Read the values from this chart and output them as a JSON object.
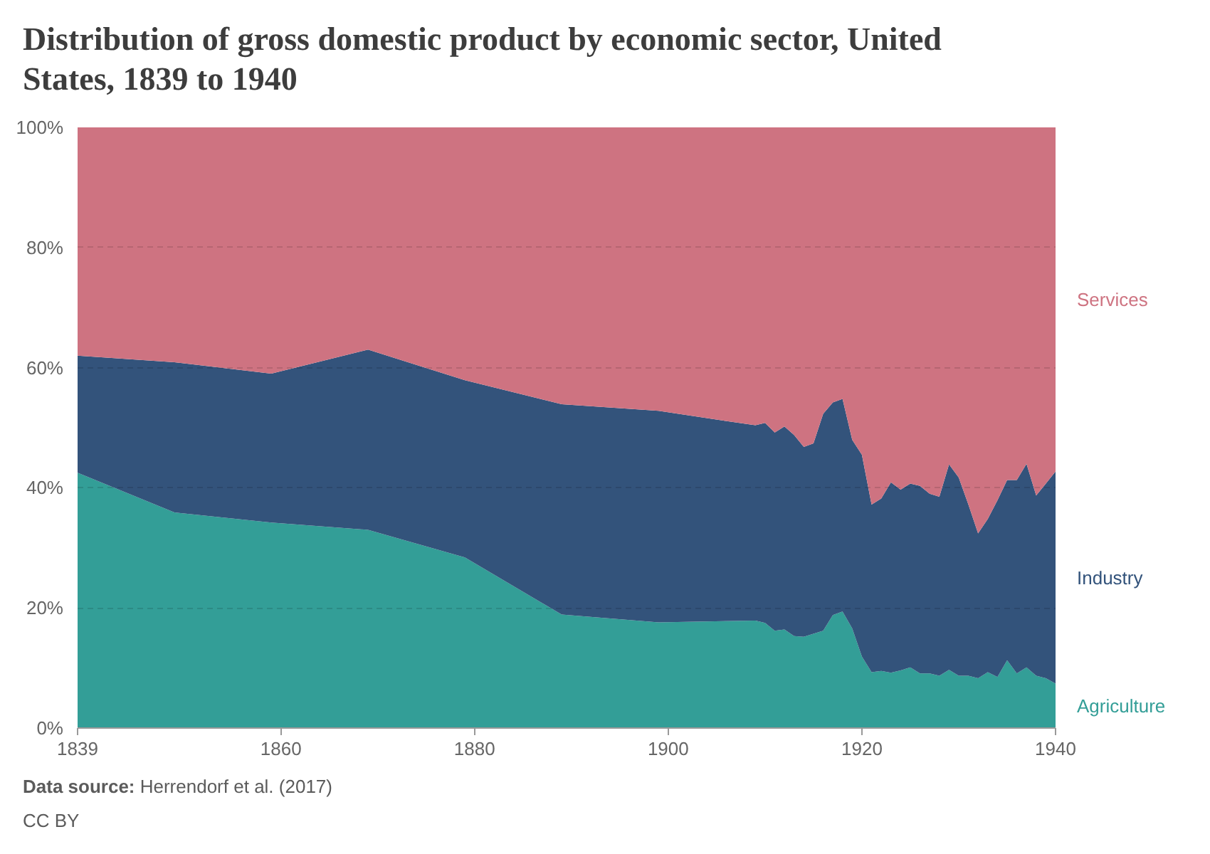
{
  "chart_data": {
    "type": "area",
    "stacked": true,
    "title": "Distribution of gross domestic product by economic sector, United States, 1839 to 1940",
    "annotations": [
      "Data source: Herrendorf et al. (2017)",
      "CC BY"
    ],
    "x": [
      1839,
      1849,
      1859,
      1869,
      1879,
      1889,
      1899,
      1909,
      1910,
      1911,
      1912,
      1913,
      1914,
      1915,
      1916,
      1917,
      1918,
      1919,
      1920,
      1921,
      1922,
      1923,
      1924,
      1925,
      1926,
      1927,
      1928,
      1929,
      1930,
      1931,
      1932,
      1933,
      1934,
      1935,
      1936,
      1937,
      1938,
      1939,
      1940
    ],
    "series": [
      {
        "name": "Agriculture",
        "color": "#339e97",
        "values": [
          42.5,
          35.9,
          34.2,
          33.0,
          28.4,
          18.9,
          17.6,
          17.9,
          17.5,
          16.2,
          16.4,
          15.3,
          15.2,
          15.7,
          16.2,
          18.8,
          19.4,
          16.6,
          11.9,
          9.3,
          9.5,
          9.2,
          9.6,
          10.1,
          9.1,
          9.1,
          8.7,
          9.7,
          8.7,
          8.7,
          8.3,
          9.3,
          8.5,
          11.3,
          9.1,
          10.1,
          8.7,
          8.3,
          7.4
        ]
      },
      {
        "name": "Industry",
        "color": "#33537b",
        "values": [
          19.5,
          25.0,
          24.8,
          30.0,
          29.5,
          35.0,
          35.2,
          32.5,
          33.3,
          33.0,
          33.8,
          33.5,
          31.6,
          31.7,
          36.1,
          35.4,
          35.4,
          31.4,
          33.6,
          27.9,
          28.7,
          31.7,
          30.1,
          30.6,
          31.2,
          29.9,
          29.8,
          34.2,
          33.0,
          28.5,
          24.1,
          25.5,
          29.4,
          30.0,
          32.2,
          33.9,
          30.0,
          32.4,
          35.3
        ]
      },
      {
        "name": "Services",
        "color": "#ce7381",
        "values": [
          38.0,
          39.1,
          41.0,
          37.0,
          42.1,
          46.1,
          47.2,
          49.6,
          49.2,
          50.8,
          49.8,
          51.2,
          53.2,
          52.6,
          47.7,
          45.8,
          45.2,
          52.0,
          54.5,
          62.8,
          61.8,
          59.1,
          60.3,
          59.3,
          59.7,
          61.0,
          61.5,
          56.1,
          58.3,
          62.8,
          67.6,
          65.2,
          62.1,
          58.7,
          58.7,
          56.0,
          61.3,
          59.3,
          57.3
        ]
      }
    ],
    "xlim": [
      1839,
      1940
    ],
    "ylim": [
      0,
      100
    ],
    "xticks": [
      1839,
      1860,
      1880,
      1900,
      1920,
      1940
    ],
    "yticks": [
      {
        "value": 0,
        "label": "0%"
      },
      {
        "value": 20,
        "label": "20%"
      },
      {
        "value": 40,
        "label": "40%"
      },
      {
        "value": 60,
        "label": "60%"
      },
      {
        "value": 80,
        "label": "80%"
      },
      {
        "value": 100,
        "label": "100%"
      }
    ],
    "grid": "y"
  }
}
